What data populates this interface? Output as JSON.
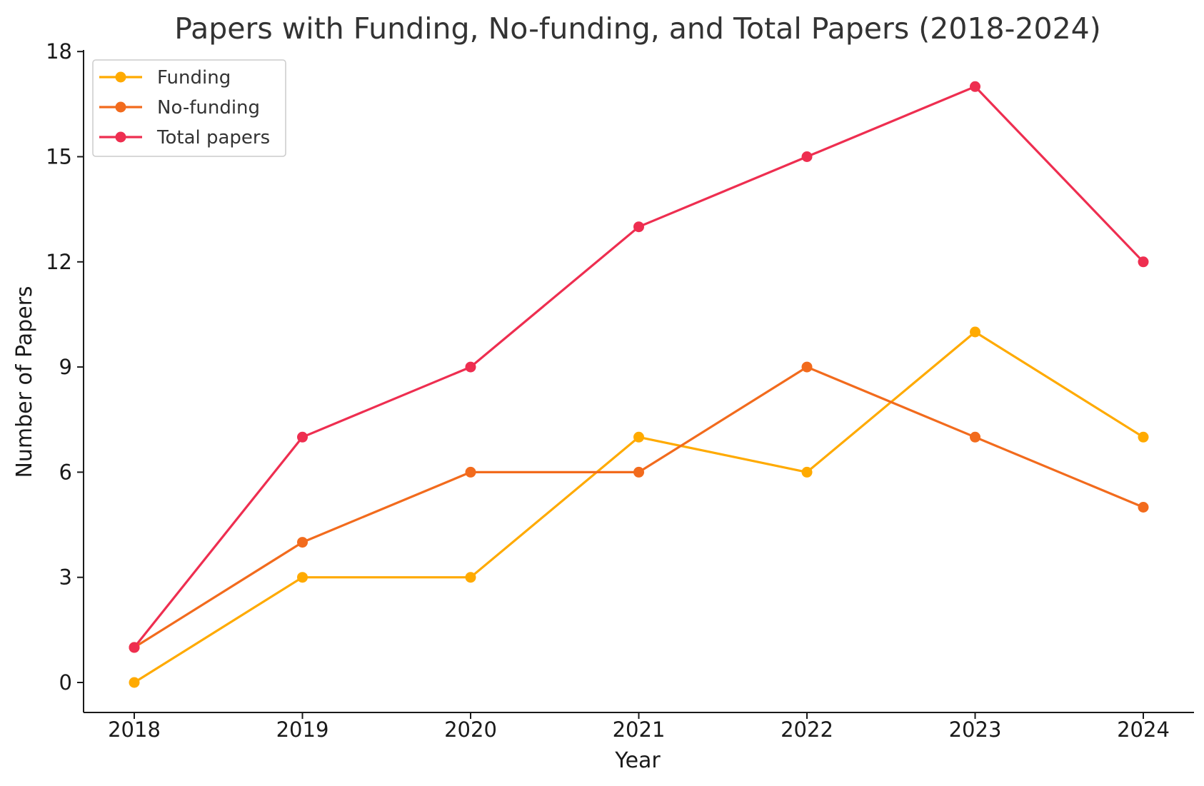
{
  "chart_data": {
    "type": "line",
    "title": "Papers with Funding, No-funding, and Total Papers (2018-2024)",
    "xlabel": "Year",
    "ylabel": "Number of Papers",
    "categories": [
      "2018",
      "2019",
      "2020",
      "2021",
      "2022",
      "2023",
      "2024"
    ],
    "yticks": [
      "0",
      "3",
      "6",
      "9",
      "12",
      "15",
      "18"
    ],
    "ylim": [
      -0.85,
      18
    ],
    "grid": false,
    "legend_position": "top-left",
    "series": [
      {
        "name": "Funding",
        "color": "#FFAA00",
        "values": [
          0,
          3,
          3,
          7,
          6,
          10,
          7
        ]
      },
      {
        "name": "No-funding",
        "color": "#F26B1D",
        "values": [
          1,
          4,
          6,
          6,
          9,
          7,
          5
        ]
      },
      {
        "name": "Total papers",
        "color": "#EE2E50",
        "values": [
          1,
          7,
          9,
          13,
          15,
          17,
          12
        ]
      }
    ]
  }
}
